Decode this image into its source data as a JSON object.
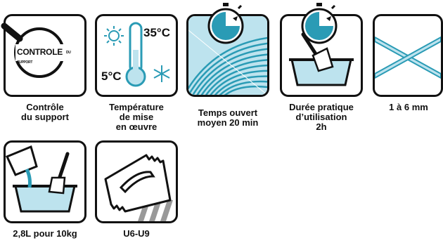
{
  "colors": {
    "accent": "#2a9bb5",
    "light_blue": "#bde3ee",
    "ink": "#111111"
  },
  "items": [
    {
      "icon": "magnifier-icon",
      "badge": "CONTROLE",
      "badge_small": "DU SUPPORT",
      "caption": [
        "Contrôle",
        "du support"
      ]
    },
    {
      "icon": "thermometer-icon",
      "temp_high": "35°C",
      "temp_low": "5°C",
      "caption": [
        "Température",
        "de mise",
        "en œuvre"
      ]
    },
    {
      "icon": "trowel-texture-timer-icon",
      "caption": [
        "Temps ouvert",
        "moyen 20 min"
      ]
    },
    {
      "icon": "mixing-tray-timer-icon",
      "caption": [
        "Durée pratique",
        "d’utilisation",
        "2h"
      ]
    },
    {
      "icon": "thickness-cross-icon",
      "caption": [
        "1 à 6 mm"
      ]
    },
    {
      "icon": "pouring-water-icon",
      "caption": [
        "2,8L pour 10kg"
      ]
    },
    {
      "icon": "notched-trowel-icon",
      "caption": [
        "U6-U9"
      ]
    }
  ]
}
